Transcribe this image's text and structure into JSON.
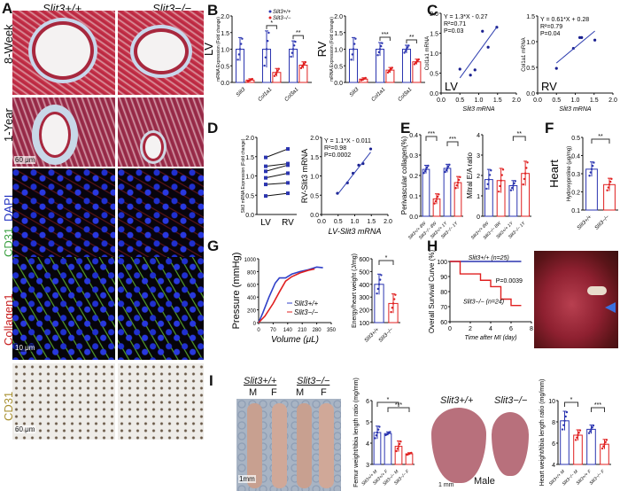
{
  "panels": {
    "A": {
      "letter": "A",
      "col_headers": [
        "Slit3+/+",
        "Slit3−/−"
      ],
      "row_labels": [
        "8-Week",
        "1-Year",
        "DAPI",
        "CD31",
        "Collagen1",
        "CD31"
      ],
      "scale_bars": [
        "60 μm",
        "10 μm",
        "60 μm"
      ]
    },
    "B": {
      "letter": "B"
    },
    "C": {
      "letter": "C"
    },
    "D": {
      "letter": "D"
    },
    "E": {
      "letter": "E"
    },
    "F": {
      "letter": "F"
    },
    "G": {
      "letter": "G"
    },
    "H": {
      "letter": "H",
      "photo_label": "heart-MI-photo"
    },
    "I": {
      "letter": "I",
      "bone_headers": [
        "Slit3+/+",
        "Slit3−/−"
      ],
      "bone_sex": [
        "M",
        "F",
        "M",
        "F"
      ],
      "bone_scale": "1mm",
      "heart_headers": [
        "Slit3+/+",
        "Slit3−/−"
      ],
      "heart_caption": "Male",
      "heart_scale": "1 mm"
    }
  },
  "chart_data": [
    {
      "id": "B-LV",
      "type": "bar",
      "title": "LV",
      "ylabel": "mRNA Expression (Fold change)",
      "categories": [
        "Slit3",
        "Col1a1",
        "Col3a1"
      ],
      "series": [
        {
          "name": "Slit3+/+",
          "color": "#2b35b0",
          "values": [
            1.0,
            1.0,
            1.0
          ],
          "errors": [
            0.35,
            0.55,
            0.25
          ]
        },
        {
          "name": "Slit3−/−",
          "color": "#e02020",
          "values": [
            0.07,
            0.3,
            0.52
          ],
          "errors": [
            0.04,
            0.12,
            0.1
          ]
        }
      ],
      "significance": [
        "",
        "*",
        "**"
      ],
      "yticks": [
        "0.0",
        "0.5",
        "1.0",
        "1.5",
        "2.0"
      ],
      "ylim": [
        0,
        2.0
      ]
    },
    {
      "id": "B-RV",
      "type": "bar",
      "title": "RV",
      "ylabel": "mRNA Expression (Fold change)",
      "categories": [
        "Slit3",
        "Col1a1",
        "Col3a1"
      ],
      "series": [
        {
          "name": "Slit3+/+",
          "color": "#2b35b0",
          "values": [
            1.0,
            1.0,
            1.0
          ],
          "errors": [
            0.35,
            0.2,
            0.12
          ]
        },
        {
          "name": "Slit3−/−",
          "color": "#e02020",
          "values": [
            0.1,
            0.37,
            0.62
          ],
          "errors": [
            0.04,
            0.08,
            0.08
          ]
        }
      ],
      "significance": [
        "",
        "***",
        "**"
      ],
      "yticks": [
        "0.0",
        "0.5",
        "1.0",
        "1.5",
        "2.0"
      ],
      "ylim": [
        0,
        2.0
      ]
    },
    {
      "id": "C-LV",
      "type": "scatter",
      "annotation": [
        "Y = 1.3*X - 0.27",
        "R²=0.71",
        "P=0.03"
      ],
      "label": "LV",
      "xlabel": "Slit3 mRNA",
      "ylabel": "Col1a1 mRNA",
      "x": [
        0.5,
        0.78,
        0.9,
        1.1,
        1.25,
        1.48
      ],
      "y": [
        0.6,
        0.45,
        0.58,
        1.55,
        1.15,
        1.65
      ],
      "fit": {
        "slope": 1.3,
        "intercept": -0.27
      },
      "xticks": [
        "0.0",
        "0.5",
        "1.0",
        "1.5",
        "2.0"
      ],
      "yticks": [
        "0.0",
        "0.5",
        "1.0",
        "1.5",
        "2.0"
      ],
      "xlim": [
        0,
        2
      ],
      "ylim": [
        0,
        2
      ]
    },
    {
      "id": "C-RV",
      "type": "scatter",
      "annotation": [
        "Y = 0.61*X + 0.28",
        "R²=0.79",
        "P=0.04"
      ],
      "label": "RV",
      "xlabel": "Slit3 mRNA",
      "ylabel": "Col1a1 mRNA",
      "x": [
        0.5,
        0.95,
        1.12,
        1.17,
        1.52
      ],
      "y": [
        0.48,
        0.87,
        1.08,
        1.08,
        1.03
      ],
      "fit": {
        "slope": 0.61,
        "intercept": 0.28
      },
      "xticks": [
        "0.0",
        "0.5",
        "1.0",
        "1.5",
        "2.0"
      ],
      "yticks": [
        "0.0",
        "0.5",
        "1.0",
        "1.5"
      ],
      "xlim": [
        0,
        2
      ],
      "ylim": [
        0,
        1.5
      ]
    },
    {
      "id": "D-paired",
      "type": "line",
      "ylabel": "Slit3 mRNA Expression (Fold change)",
      "categories": [
        "LV",
        "RV"
      ],
      "pairs": [
        [
          1.48,
          1.7
        ],
        [
          1.25,
          1.32
        ],
        [
          1.12,
          1.28
        ],
        [
          0.95,
          1.07
        ],
        [
          0.78,
          0.82
        ],
        [
          0.48,
          0.55
        ]
      ],
      "yticks": [
        "0.0",
        "0.5",
        "1.0",
        "1.5",
        "2.0"
      ],
      "ylim": [
        0,
        2
      ]
    },
    {
      "id": "D-scatter",
      "type": "scatter",
      "annotation": [
        "Y = 1.1*X - 0.011",
        "R²=0.98",
        "P=0.0002"
      ],
      "xlabel": "LV-Slit3 mRNA",
      "ylabel": "RV-Slit3 mRNA",
      "x": [
        0.48,
        0.78,
        0.95,
        1.12,
        1.25,
        1.48
      ],
      "y": [
        0.55,
        0.82,
        1.07,
        1.28,
        1.32,
        1.7
      ],
      "fit": {
        "slope": 1.1,
        "intercept": -0.011
      },
      "xticks": [
        "0.0",
        "0.5",
        "1.0",
        "1.5",
        "2.0"
      ],
      "yticks": [
        "0.0",
        "0.5",
        "1.0",
        "1.5",
        "2.0"
      ],
      "xlim": [
        0,
        2
      ],
      "ylim": [
        0,
        2
      ]
    },
    {
      "id": "E-perivascular",
      "type": "bar",
      "ylabel": "Perivascular collagen(%)",
      "categories": [
        "Slit3+/+ 8W",
        "Slit3−/− 8W",
        "Slit3+/+ 1Y",
        "Slit3−/− 1Y"
      ],
      "values": [
        0.23,
        0.085,
        0.235,
        0.165
      ],
      "errors": [
        0.02,
        0.025,
        0.02,
        0.03
      ],
      "colors": [
        "#2b35b0",
        "#e02020",
        "#2b35b0",
        "#e02020"
      ],
      "significance": [
        [
          "0",
          "1",
          "***"
        ],
        [
          "2",
          "3",
          "***"
        ]
      ],
      "yticks": [
        "0.0",
        "0.1",
        "0.2",
        "0.3",
        "0.4"
      ],
      "ylim": [
        0,
        0.4
      ]
    },
    {
      "id": "E-mitral",
      "type": "bar",
      "ylabel": "Mitral E/A ratio",
      "categories": [
        "Slit3+/+ 8W",
        "Slit3−/− 8W",
        "Slit3+/+ 1Y",
        "Slit3−/− 1Y"
      ],
      "values": [
        1.8,
        1.75,
        1.5,
        2.1
      ],
      "errors": [
        0.5,
        0.6,
        0.25,
        0.6
      ],
      "colors": [
        "#2b35b0",
        "#e02020",
        "#2b35b0",
        "#e02020"
      ],
      "significance": [
        [
          "2",
          "3",
          "**"
        ]
      ],
      "yticks": [
        "0",
        "1",
        "2",
        "3",
        "4"
      ],
      "ylim": [
        0,
        4
      ]
    },
    {
      "id": "F-hydroxyproline",
      "type": "bar",
      "title": "Heart",
      "ylabel": "Hydroxyproline (μg/mg)",
      "categories": [
        "Slit3+/+",
        "Slit3−/−"
      ],
      "values": [
        0.325,
        0.24
      ],
      "errors": [
        0.04,
        0.035
      ],
      "colors": [
        "#2b35b0",
        "#e02020"
      ],
      "significance": [
        [
          "0",
          "1",
          "**"
        ]
      ],
      "yticks": [
        "0.1",
        "0.2",
        "0.3",
        "0.4",
        "0.5"
      ],
      "ylim": [
        0.1,
        0.5
      ]
    },
    {
      "id": "G-PV",
      "type": "line",
      "xlabel": "Volume (μL)",
      "ylabel": "Pressure (mmHg)",
      "legend": [
        "Slit3+/+",
        "Slit3−/−"
      ],
      "series": [
        {
          "name": "Slit3+/+",
          "color": "#3040c8",
          "x": [
            0,
            20,
            50,
            80,
            100,
            130,
            160,
            200,
            240,
            280,
            310
          ],
          "y": [
            0,
            150,
            400,
            620,
            700,
            700,
            760,
            800,
            830,
            870,
            860
          ]
        },
        {
          "name": "Slit3−/−",
          "color": "#e02020",
          "x": [
            0,
            30,
            70,
            100,
            130,
            160,
            200,
            240,
            270
          ],
          "y": [
            0,
            100,
            300,
            480,
            650,
            720,
            780,
            820,
            840
          ]
        }
      ],
      "xticks": [
        "0",
        "70",
        "140",
        "210",
        "280",
        "350"
      ],
      "yticks": [
        "0",
        "200",
        "400",
        "600",
        "800",
        "1000"
      ],
      "xlim": [
        0,
        350
      ],
      "ylim": [
        0,
        1000
      ]
    },
    {
      "id": "G-energy",
      "type": "bar",
      "ylabel": "Energy/heart weight (J/mg)",
      "categories": [
        "Slit3+/+",
        "Slit3−/−"
      ],
      "values": [
        400,
        250
      ],
      "errors": [
        80,
        75
      ],
      "colors": [
        "#2b35b0",
        "#e02020"
      ],
      "significance": [
        [
          "0",
          "1",
          "*"
        ]
      ],
      "yticks": [
        "100",
        "200",
        "300",
        "400",
        "500",
        "600"
      ],
      "ylim": [
        100,
        600
      ]
    },
    {
      "id": "H-survival",
      "type": "line",
      "xlabel": "Time after MI (day)",
      "ylabel": "Overall Survival Curve (%)",
      "series": [
        {
          "name": "Slit3+/+ (n=25)",
          "color": "#2b35b0",
          "x": [
            0,
            7
          ],
          "y": [
            100,
            100
          ]
        },
        {
          "name": "Slit3−/− (n=24)",
          "color": "#e02020",
          "x": [
            0,
            1,
            1,
            3,
            3,
            4,
            4,
            5,
            5,
            6,
            6,
            7
          ],
          "y": [
            100,
            100,
            91.7,
            91.7,
            87.5,
            87.5,
            83.3,
            83.3,
            75,
            75,
            70.8,
            70.8
          ]
        }
      ],
      "annotation": "P=0.0039",
      "xticks": [
        "0",
        "2",
        "4",
        "6",
        "8"
      ],
      "yticks": [
        "60",
        "70",
        "80",
        "90",
        "100"
      ],
      "xlim": [
        0,
        8
      ],
      "ylim": [
        60,
        100
      ]
    },
    {
      "id": "I-femur",
      "type": "bar",
      "ylabel": "Femur weight/tibia length ratio (mg/mm)",
      "categories": [
        "Slit3+/+ M",
        "Slit3+/+ F",
        "Slit3−/− M",
        "Slit3−/− F"
      ],
      "values": [
        4.5,
        4.45,
        3.85,
        3.5
      ],
      "errors": [
        0.3,
        0.08,
        0.25,
        0.05
      ],
      "colors": [
        "#2b35b0",
        "#2b35b0",
        "#e02020",
        "#e02020"
      ],
      "significance": [
        [
          "0",
          "2",
          "*"
        ],
        [
          "1",
          "3",
          "***"
        ]
      ],
      "yticks": [
        "3",
        "4",
        "5",
        "6"
      ],
      "ylim": [
        3,
        6
      ]
    },
    {
      "id": "I-heart",
      "type": "bar",
      "ylabel": "Heart weight/tibia length ratio (mg/mm)",
      "categories": [
        "Slit3+/+ M",
        "Slit3−/− M",
        "Slit3+/+ F",
        "Slit3−/− F"
      ],
      "values": [
        8.1,
        6.75,
        7.3,
        5.9
      ],
      "errors": [
        0.9,
        0.5,
        0.4,
        0.45
      ],
      "colors": [
        "#2b35b0",
        "#e02020",
        "#2b35b0",
        "#e02020"
      ],
      "significance": [
        [
          "0",
          "1",
          "*"
        ],
        [
          "2",
          "3",
          "***"
        ]
      ],
      "yticks": [
        "4",
        "6",
        "8",
        "10"
      ],
      "ylim": [
        4,
        10
      ]
    }
  ]
}
